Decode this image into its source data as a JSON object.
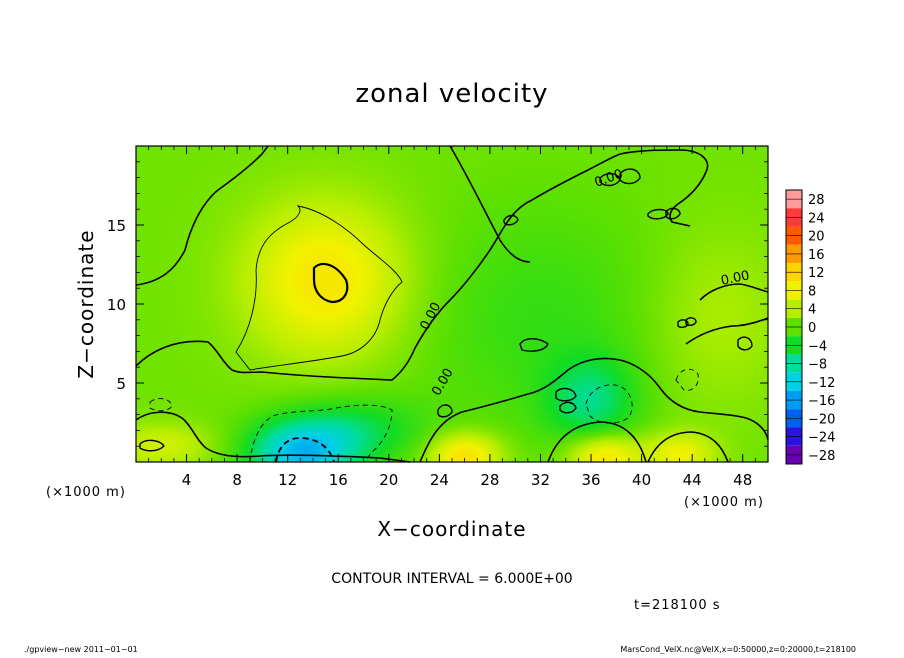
{
  "chart_data": {
    "type": "heatmap",
    "title": "zonal velocity",
    "xlabel": "X−coordinate",
    "ylabel": "Z−coordinate",
    "x_unit": "(×1000 m)",
    "z_unit": "(×1000 m)",
    "xlim": [
      0,
      50
    ],
    "ylim": [
      0,
      20
    ],
    "x_ticks": [
      4,
      8,
      12,
      16,
      20,
      24,
      28,
      32,
      36,
      40,
      44,
      48
    ],
    "y_ticks": [
      5,
      10,
      15
    ],
    "colorbar_levels": [
      28,
      24,
      20,
      16,
      12,
      8,
      4,
      0,
      -4,
      -8,
      -12,
      -16,
      -20,
      -24,
      -28
    ],
    "colorbar_labels": [
      "28",
      "24",
      "20",
      "16",
      "12",
      "8",
      "4",
      "0",
      "−4",
      "−8",
      "−12",
      "−16",
      "−20",
      "−24",
      "−28"
    ],
    "colorbar_colors": [
      "#ff9b9b",
      "#ff3a3a",
      "#ff5a00",
      "#ff9a00",
      "#ffd400",
      "#f2f200",
      "#b7ee00",
      "#5ee000",
      "#12dc22",
      "#00dc9c",
      "#00d2e6",
      "#009cf4",
      "#0060f0",
      "#2a12e0",
      "#6a00b0"
    ],
    "contour_labels": [
      "0.00",
      "0.00",
      "0.00",
      "0.00"
    ],
    "contour_interval": "CONTOUR INTERVAL = 6.000E+00",
    "field_features": [
      {
        "x": 15,
        "z": 11.5,
        "value": 9,
        "sx": 4.5,
        "sz": 3.5
      },
      {
        "x": 13,
        "z": 0.5,
        "value": -13,
        "sx": 3.0,
        "sz": 1.4
      },
      {
        "x": 17,
        "z": 2.0,
        "value": -6,
        "sx": 4.0,
        "sz": 1.5
      },
      {
        "x": 36,
        "z": 3.8,
        "value": -7,
        "sx": 2.5,
        "sz": 2.0
      },
      {
        "x": 26,
        "z": 0.4,
        "value": 10,
        "sx": 2.0,
        "sz": 1.0
      },
      {
        "x": 37,
        "z": 0.4,
        "value": 10,
        "sx": 2.0,
        "sz": 1.0
      },
      {
        "x": 43,
        "z": 0.5,
        "value": 7,
        "sx": 2.0,
        "sz": 1.0
      },
      {
        "x": 32,
        "z": 9.0,
        "value": -3,
        "sx": 7.0,
        "sz": 5.0
      },
      {
        "x": 2,
        "z": 1.0,
        "value": 5,
        "sx": 3.0,
        "sz": 1.0
      },
      {
        "x": 46,
        "z": 9.0,
        "value": 3,
        "sx": 4.0,
        "sz": 4.0
      }
    ]
  },
  "footer": {
    "time": "t=218100 s",
    "program": "./gpview−new   2011−01−01",
    "source": "MarsCond_VelX.nc@VelX,x=0:50000,z=0:20000,t=218100"
  }
}
